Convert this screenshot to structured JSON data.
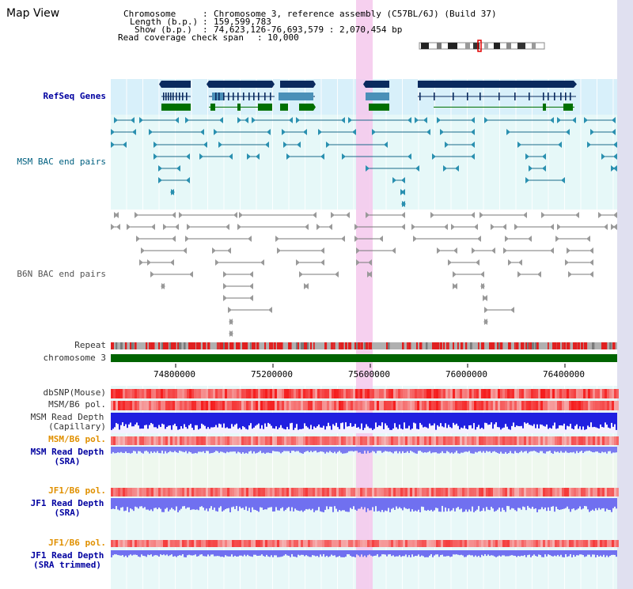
{
  "window": {
    "title": "Map View"
  },
  "info": {
    "chromosome_label": "Chromosome",
    "chromosome_value": "Chromosome 3, reference assembly (C57BL/6J) (Build 37)",
    "length_label": "Length (b.p.)",
    "length_value": "159,599,783",
    "show_label": "Show (b.p.)",
    "show_value": "74,623,126-76,693,579 : 2,070,454 bp",
    "coverage_label": "Read coverage check span",
    "coverage_value": "10,000"
  },
  "tracks": {
    "refseq": "RefSeq Genes",
    "msm_bac": "MSM BAC end pairs",
    "b6n_bac": "B6N BAC end pairs",
    "repeat": "Repeat",
    "chromosome": "chromosome 3",
    "dbsnp": "dbSNP(Mouse)",
    "msm_b6_pol_1": "MSM/B6 pol.",
    "msm_depth_cap_1": "MSM Read Depth",
    "msm_depth_cap_2": "(Capillary)",
    "msm_b6_pol_2": "MSM/B6 pol.",
    "msm_depth_sra_1": "MSM Read Depth",
    "msm_depth_sra_2": "(SRA)",
    "jf1_b6_pol_1": "JF1/B6 pol.",
    "jf1_depth_sra_1": "JF1 Read Depth",
    "jf1_depth_sra_2": "(SRA)",
    "jf1_b6_pol_2": "JF1/B6 pol.",
    "jf1_depth_trim_1": "JF1 Read Depth",
    "jf1_depth_trim_2": "(SRA trimmed)"
  },
  "axis": {
    "ticks": [
      "74800000",
      "75200000",
      "75600000",
      "76000000",
      "76400000"
    ]
  },
  "colors": {
    "navy_label": "#0000a0",
    "teal_label": "#006080",
    "orange_label": "#e09000",
    "highlight": "#f4c8ec",
    "gene_dark": "#0a2a5e",
    "gene_mid": "#4a90b8",
    "gene_green": "#007000",
    "chromosome_bar": "#006400",
    "repeat_red": "#e02020"
  }
}
